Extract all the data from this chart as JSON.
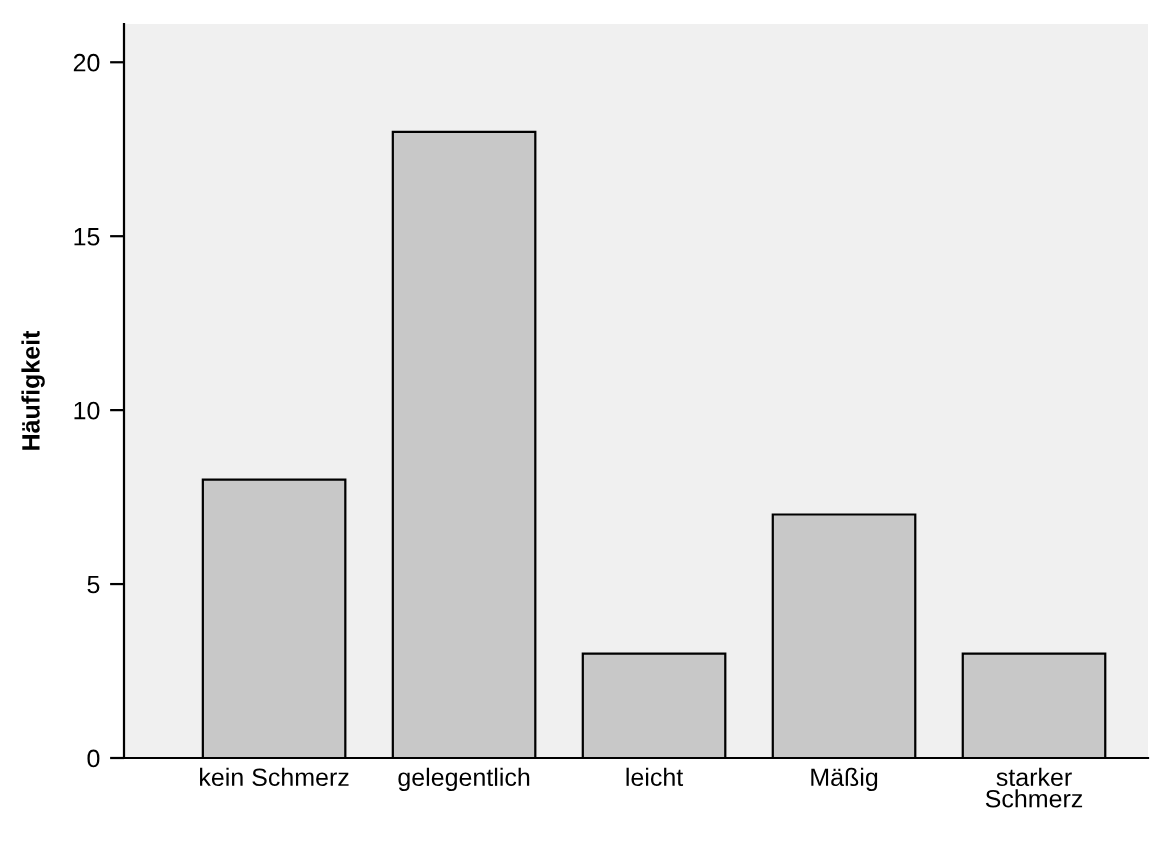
{
  "chart_data": {
    "type": "bar",
    "ylabel": "Häufigkeit",
    "categories": [
      "kein Schmerz",
      "gelegentlich",
      "leicht",
      "Mäßig",
      "starker Schmerz"
    ],
    "values": [
      8,
      18,
      3,
      7,
      3
    ],
    "color": "#c8c8c8",
    "ylim": [
      0,
      21.1
    ],
    "yticks": [
      0,
      5,
      10,
      15,
      20
    ],
    "grid": false,
    "legend": false
  }
}
